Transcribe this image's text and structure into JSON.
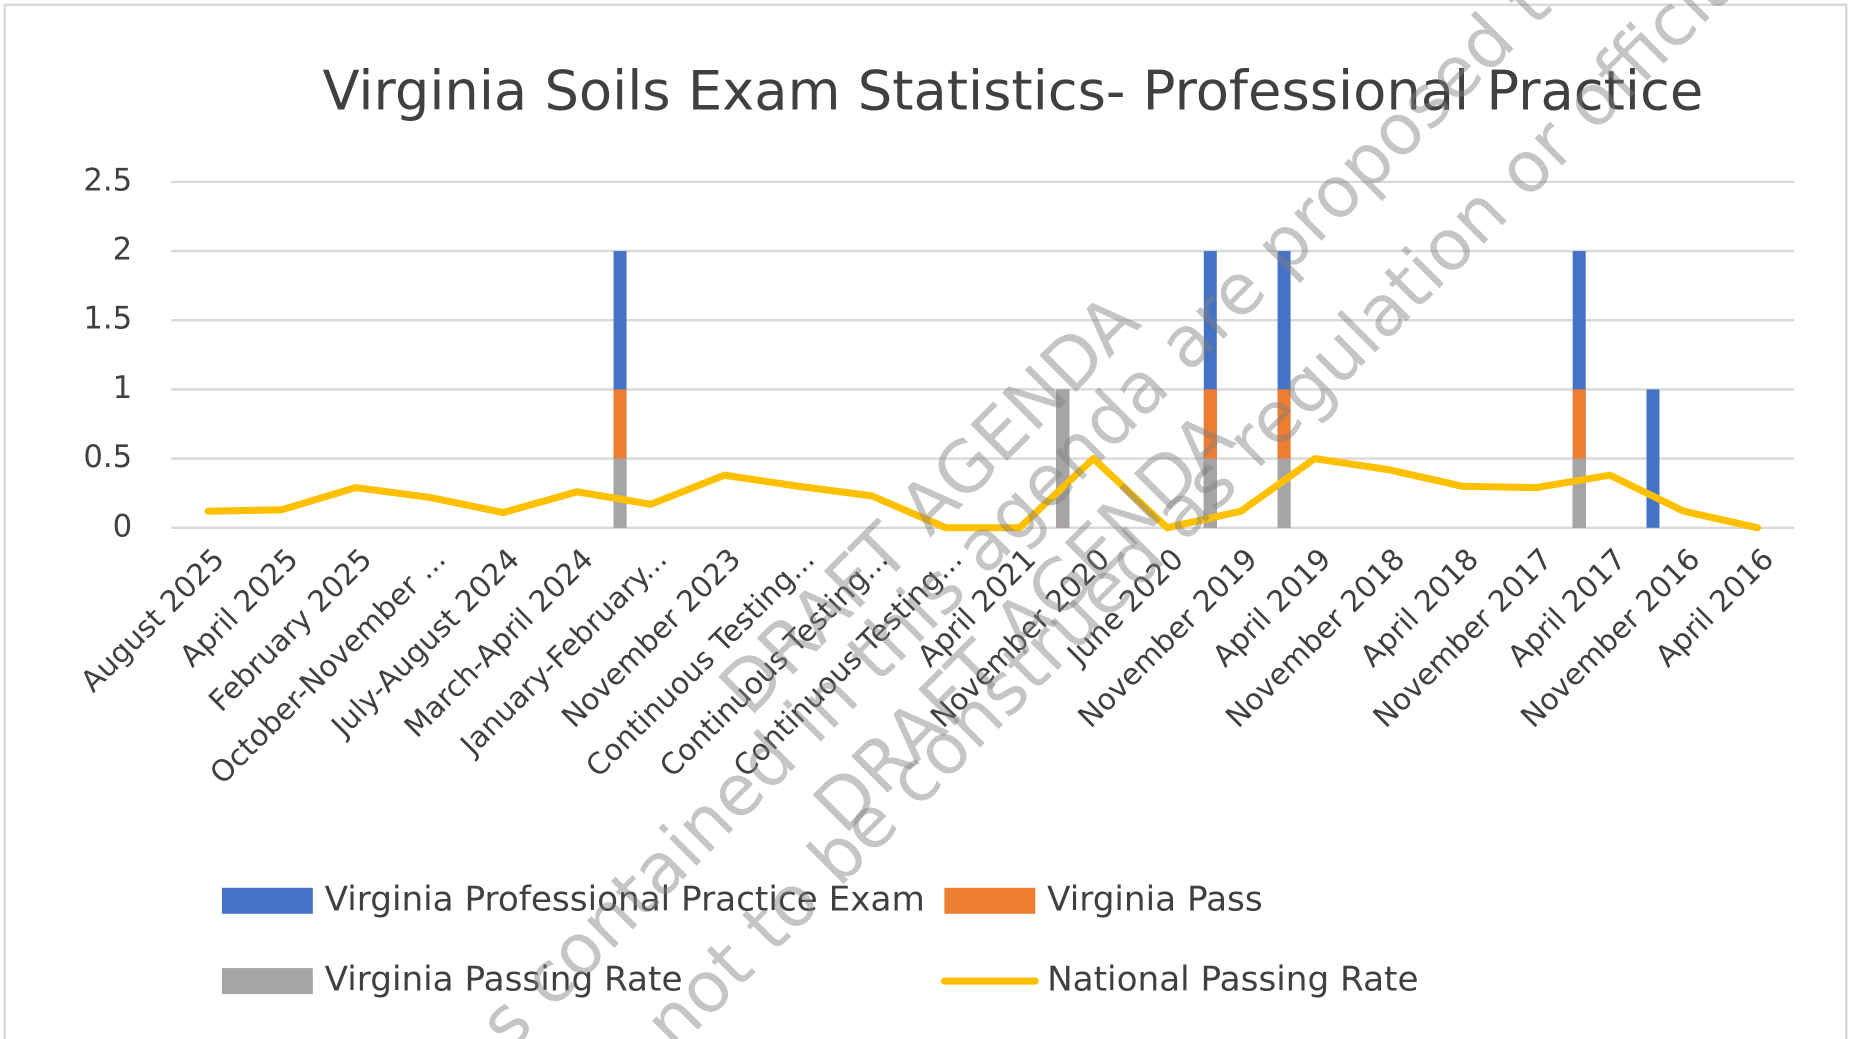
{
  "chart_data": {
    "type": "bar_line",
    "title": "Virginia Soils Exam Statistics- Professional Practice",
    "categories": [
      "August 2025",
      "April 2025",
      "February 2025",
      "October-November ...",
      "July-August 2024",
      "March-April 2024",
      "January-February...",
      "November 2023",
      "Continuous Testing...",
      "Continuous Testing...",
      "Continuous Testing...",
      "April 2021",
      "November 2020",
      "June 2020",
      "November 2019",
      "April 2019",
      "November 2018",
      "April 2018",
      "November 2017",
      "April 2017",
      "November 2016",
      "April 2016"
    ],
    "series": [
      {
        "name": "Virginia Professional Practice Exam",
        "color": "#4472c4",
        "kind": "bar",
        "values": [
          0,
          0,
          0,
          0,
          0,
          0,
          2,
          0,
          0,
          0,
          0,
          0,
          1,
          0,
          2,
          2,
          0,
          0,
          0,
          2,
          1,
          0
        ]
      },
      {
        "name": "Virginia Pass",
        "color": "#ed7d31",
        "kind": "bar",
        "values": [
          0,
          0,
          0,
          0,
          0,
          0,
          1,
          0,
          0,
          0,
          0,
          0,
          1,
          0,
          1,
          1,
          0,
          0,
          0,
          1,
          0,
          0
        ]
      },
      {
        "name": "Virginia Passing Rate",
        "color": "#a5a5a5",
        "kind": "bar",
        "values": [
          0,
          0,
          0,
          0,
          0,
          0,
          0.5,
          0,
          0,
          0,
          0,
          0,
          1,
          0,
          0.5,
          0.5,
          0,
          0,
          0,
          0.5,
          0,
          0
        ]
      },
      {
        "name": "National Passing Rate",
        "color": "#ffc000",
        "kind": "line",
        "values": [
          0.12,
          0.13,
          0.29,
          0.22,
          0.11,
          0.26,
          0.17,
          0.38,
          0.3,
          0.23,
          0,
          0,
          0.5,
          0,
          0.12,
          0.5,
          0.42,
          0.3,
          0.29,
          0.38,
          0.12,
          0
        ]
      }
    ],
    "ylim": [
      0,
      2.5
    ],
    "yticks": [
      0,
      0.5,
      1,
      1.5,
      2,
      2.5
    ],
    "grid": true,
    "legend": "bottom",
    "watermarks": [
      "DRAFT AGENDA",
      "DRAFT AGENDA",
      "s contained in this agenda are proposed topics for di",
      "not to be construed as regulation or official board pos"
    ]
  }
}
